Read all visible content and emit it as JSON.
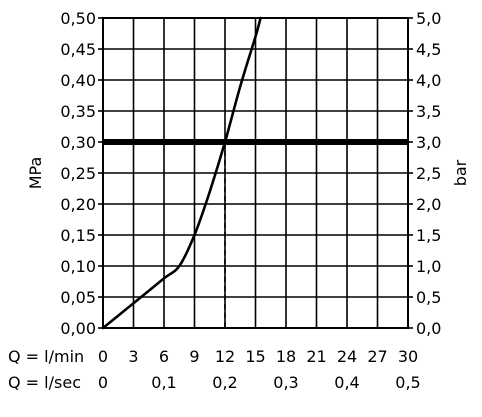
{
  "chart_data": {
    "type": "line",
    "title": "",
    "ylabel_left": "MPa",
    "ylabel_right": "bar",
    "xlabel_lmin": "Q = l/min",
    "xlabel_lsec": "Q = l/sec",
    "x_lmin_ticks": [
      "0",
      "3",
      "6",
      "9",
      "12",
      "15",
      "18",
      "21",
      "24",
      "27",
      "30"
    ],
    "x_lsec_ticks": [
      "0",
      "0,1",
      "0,2",
      "0,3",
      "0,4",
      "0,5"
    ],
    "y_left_ticks": [
      "0,00",
      "0,05",
      "0,10",
      "0,15",
      "0,20",
      "0,25",
      "0,30",
      "0,35",
      "0,40",
      "0,45",
      "0,50"
    ],
    "y_right_ticks": [
      "0,0",
      "0,5",
      "1,0",
      "1,5",
      "2,0",
      "2,5",
      "3,0",
      "3,5",
      "4,0",
      "4,5",
      "5,0"
    ],
    "xlim": [
      0,
      30
    ],
    "ylim": [
      0,
      0.5
    ],
    "grid": true,
    "series": [
      {
        "x": [
          0,
          3,
          6,
          7.5,
          9,
          10.5,
          12,
          13.5,
          15,
          15.5
        ],
        "y": [
          0,
          0.04,
          0.08,
          0.1,
          0.15,
          0.22,
          0.3,
          0.39,
          0.47,
          0.5
        ]
      }
    ],
    "reference_line": {
      "y": 0.3,
      "x_marker": 12
    }
  }
}
